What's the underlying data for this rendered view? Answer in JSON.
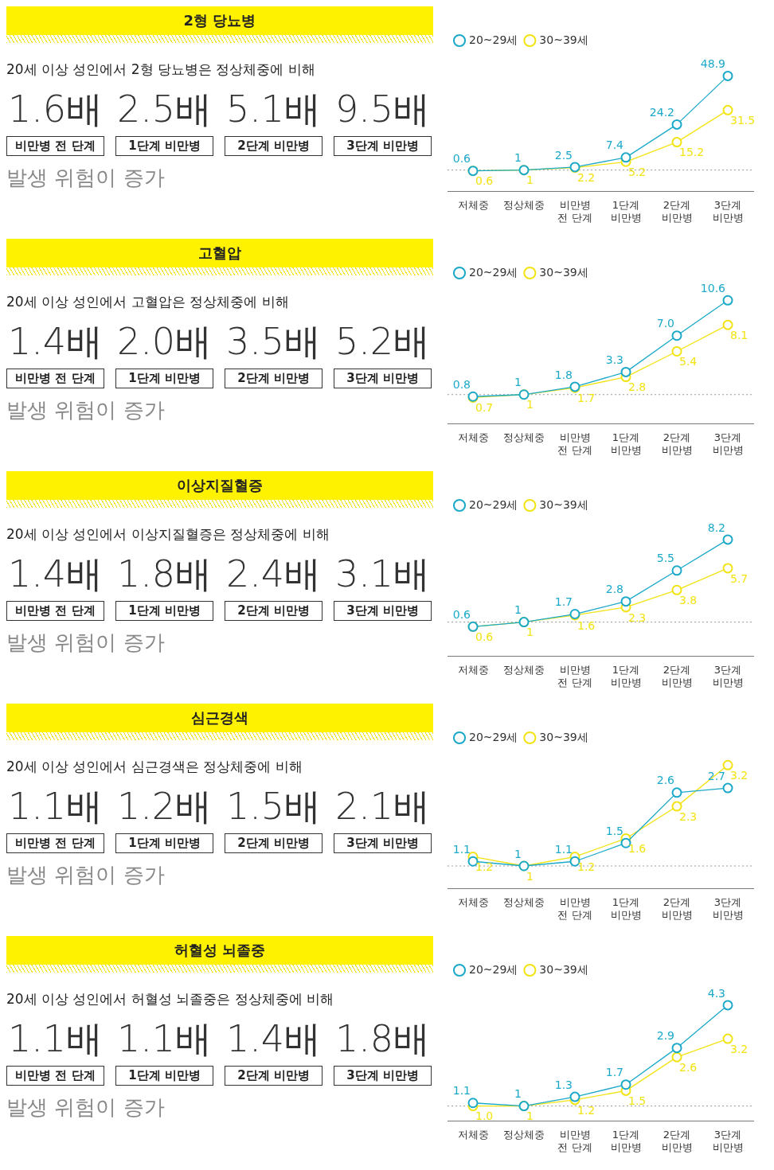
{
  "chart_data": [
    {
      "type": "other",
      "title": "2형 당뇨병",
      "subtitle": "20세 이상 성인에서 2형 당뇨병은 정상체중에 비해",
      "categories": [
        "비만병 전 단계",
        "1단계 비만병",
        "2단계 비만병",
        "3단계 비만병"
      ],
      "value_labels": [
        "1.6배",
        "2.5배",
        "5.1배",
        "9.5배"
      ],
      "annotations": [
        "발생 위험이 증가"
      ]
    },
    {
      "type": "line",
      "categories": [
        "저체중",
        "정상체중",
        "비만병 전 단계",
        "1단계 비만병",
        "2단계 비만병",
        "3단계 비만병"
      ],
      "tick_labels": "x",
      "legend": "top left",
      "marker": "circle",
      "ref_lines": [
        {
          "axis": "y",
          "value": 1,
          "color": "#999999",
          "line_style": "dotted"
        }
      ],
      "series": [
        {
          "name": "20~29세",
          "color": "#1ba9c9",
          "values": [
            0.6,
            1,
            2.5,
            7.4,
            24.2,
            48.9
          ],
          "value_labels": [
            "0.6",
            "1",
            "2.5",
            "7.4",
            "24.2",
            "48.9"
          ]
        },
        {
          "name": "30~39세",
          "color": "#f2e313",
          "values": [
            0.6,
            1,
            2.2,
            5.2,
            15.2,
            31.5
          ],
          "value_labels": [
            "0.6",
            "1",
            "2.2",
            "5.2",
            "15.2",
            "31.5"
          ]
        }
      ]
    },
    {
      "type": "other",
      "title": "고혈압",
      "subtitle": "20세 이상 성인에서 고혈압은 정상체중에 비해",
      "categories": [
        "비만병 전 단계",
        "1단계 비만병",
        "2단계 비만병",
        "3단계 비만병"
      ],
      "value_labels": [
        "1.4배",
        "2.0배",
        "3.5배",
        "5.2배"
      ],
      "annotations": [
        "발생 위험이 증가"
      ]
    },
    {
      "type": "line",
      "categories": [
        "저체중",
        "정상체중",
        "비만병 전 단계",
        "1단계 비만병",
        "2단계 비만병",
        "3단계 비만병"
      ],
      "tick_labels": "x",
      "legend": "top left",
      "marker": "circle",
      "ref_lines": [
        {
          "axis": "y",
          "value": 1,
          "color": "#999999",
          "line_style": "dotted"
        }
      ],
      "series": [
        {
          "name": "20~29세",
          "color": "#1ba9c9",
          "values": [
            0.8,
            1,
            1.8,
            3.3,
            7.0,
            10.6
          ],
          "value_labels": [
            "0.8",
            "1",
            "1.8",
            "3.3",
            "7.0",
            "10.6"
          ]
        },
        {
          "name": "30~39세",
          "color": "#f2e313",
          "values": [
            0.7,
            1,
            1.7,
            2.8,
            5.4,
            8.1
          ],
          "value_labels": [
            "0.7",
            "1",
            "1.7",
            "2.8",
            "5.4",
            "8.1"
          ]
        }
      ]
    },
    {
      "type": "other",
      "title": "이상지질혈증",
      "subtitle": "20세 이상 성인에서 이상지질혈증은 정상체중에 비해",
      "categories": [
        "비만병 전 단계",
        "1단계 비만병",
        "2단계 비만병",
        "3단계 비만병"
      ],
      "value_labels": [
        "1.4배",
        "1.8배",
        "2.4배",
        "3.1배"
      ],
      "annotations": [
        "발생 위험이 증가"
      ]
    },
    {
      "type": "line",
      "categories": [
        "저체중",
        "정상체중",
        "비만병 전 단계",
        "1단계 비만병",
        "2단계 비만병",
        "3단계 비만병"
      ],
      "tick_labels": "x",
      "legend": "top left",
      "marker": "circle",
      "ref_lines": [
        {
          "axis": "y",
          "value": 1,
          "color": "#999999",
          "line_style": "dotted"
        }
      ],
      "series": [
        {
          "name": "20~29세",
          "color": "#1ba9c9",
          "values": [
            0.6,
            1,
            1.7,
            2.8,
            5.5,
            8.2
          ],
          "value_labels": [
            "0.6",
            "1",
            "1.7",
            "2.8",
            "5.5",
            "8.2"
          ]
        },
        {
          "name": "30~39세",
          "color": "#f2e313",
          "values": [
            0.6,
            1,
            1.6,
            2.3,
            3.8,
            5.7
          ],
          "value_labels": [
            "0.6",
            "1",
            "1.6",
            "2.3",
            "3.8",
            "5.7"
          ]
        }
      ]
    },
    {
      "type": "other",
      "title": "심근경색",
      "subtitle": "20세 이상 성인에서 심근경색은 정상체중에 비해",
      "categories": [
        "비만병 전 단계",
        "1단계 비만병",
        "2단계 비만병",
        "3단계 비만병"
      ],
      "value_labels": [
        "1.1배",
        "1.2배",
        "1.5배",
        "2.1배"
      ],
      "annotations": [
        "발생 위험이 증가"
      ]
    },
    {
      "type": "line",
      "categories": [
        "저체중",
        "정상체중",
        "비만병 전 단계",
        "1단계 비만병",
        "2단계 비만병",
        "3단계 비만병"
      ],
      "tick_labels": "x",
      "legend": "top left",
      "marker": "circle",
      "ref_lines": [
        {
          "axis": "y",
          "value": 1,
          "color": "#999999",
          "line_style": "dotted"
        }
      ],
      "series": [
        {
          "name": "20~29세",
          "color": "#1ba9c9",
          "values": [
            1.1,
            1,
            1.1,
            1.5,
            2.6,
            2.7
          ],
          "value_labels": [
            "1.1",
            "1",
            "1.1",
            "1.5",
            "2.6",
            "2.7"
          ]
        },
        {
          "name": "30~39세",
          "color": "#f2e313",
          "values": [
            1.2,
            1,
            1.2,
            1.6,
            2.3,
            3.2
          ],
          "value_labels": [
            "1.2",
            "1",
            "1.2",
            "1.6",
            "2.3",
            "3.2"
          ]
        }
      ]
    },
    {
      "type": "other",
      "title": "허혈성 뇌졸중",
      "subtitle": "20세 이상 성인에서 허혈성 뇌졸중은 정상체중에 비해",
      "categories": [
        "비만병 전 단계",
        "1단계 비만병",
        "2단계 비만병",
        "3단계 비만병"
      ],
      "value_labels": [
        "1.1배",
        "1.1배",
        "1.4배",
        "1.8배"
      ],
      "annotations": [
        "발생 위험이 증가"
      ]
    },
    {
      "type": "line",
      "categories": [
        "저체중",
        "정상체중",
        "비만병 전 단계",
        "1단계 비만병",
        "2단계 비만병",
        "3단계 비만병"
      ],
      "tick_labels": "x",
      "legend": "top left",
      "marker": "circle",
      "ref_lines": [
        {
          "axis": "y",
          "value": 1,
          "color": "#999999",
          "line_style": "dotted"
        }
      ],
      "series": [
        {
          "name": "20~29세",
          "color": "#1ba9c9",
          "values": [
            1.1,
            1,
            1.3,
            1.7,
            2.9,
            4.3
          ],
          "value_labels": [
            "1.1",
            "1",
            "1.3",
            "1.7",
            "2.9",
            "4.3"
          ]
        },
        {
          "name": "30~39세",
          "color": "#f2e313",
          "values": [
            1.0,
            1,
            1.2,
            1.5,
            2.6,
            3.2
          ],
          "value_labels": [
            "1.0",
            "1",
            "1.2",
            "1.5",
            "2.6",
            "3.2"
          ]
        }
      ]
    }
  ]
}
